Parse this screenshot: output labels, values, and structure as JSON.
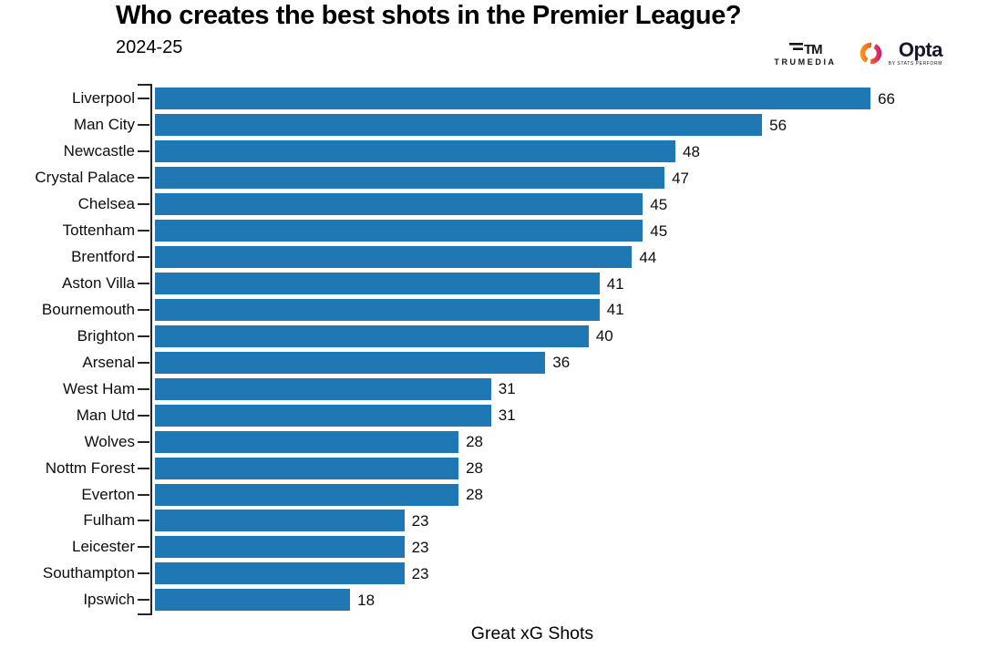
{
  "header": {
    "title": "Who creates the best shots in the Premier League?",
    "subtitle": "2024-25",
    "logos": {
      "trumedia_mark": "TM",
      "trumedia_text": "TRUMEDIA",
      "opta_text": "Opta",
      "opta_subtext": "BY STATS PERFORM"
    }
  },
  "chart_data": {
    "type": "bar",
    "orientation": "horizontal",
    "title": "Who creates the best shots in the Premier League?",
    "subtitle": "2024-25",
    "xlabel": "Great xG Shots",
    "ylabel": "",
    "xlim": [
      0,
      67
    ],
    "grid": false,
    "legend": false,
    "value_labels": true,
    "bar_color": "#1f77b4",
    "axis_color": "#262626",
    "categories": [
      "Liverpool",
      "Man City",
      "Newcastle",
      "Crystal Palace",
      "Chelsea",
      "Tottenham",
      "Brentford",
      "Aston Villa",
      "Bournemouth",
      "Brighton",
      "Arsenal",
      "West Ham",
      "Man Utd",
      "Wolves",
      "Nottm Forest",
      "Everton",
      "Fulham",
      "Leicester",
      "Southampton",
      "Ipswich"
    ],
    "values": [
      66,
      56,
      48,
      47,
      45,
      45,
      44,
      41,
      41,
      40,
      36,
      31,
      31,
      28,
      28,
      28,
      23,
      23,
      23,
      18
    ]
  }
}
